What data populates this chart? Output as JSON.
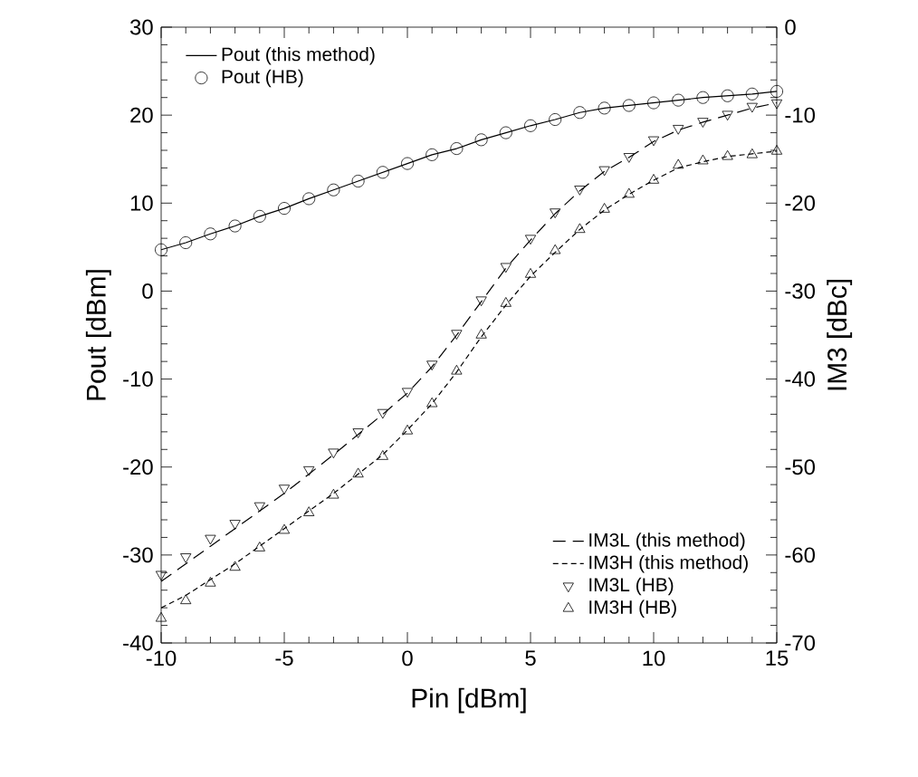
{
  "chart_data": {
    "type": "line",
    "xlabel": "Pin [dBm]",
    "ylabel": "Pout [dBm]",
    "y2label": "IM3 [dBc]",
    "x": [
      -10,
      -9,
      -8,
      -7,
      -6,
      -5,
      -4,
      -3,
      -2,
      -1,
      0,
      1,
      2,
      3,
      4,
      5,
      6,
      7,
      8,
      9,
      10,
      11,
      12,
      13,
      14,
      15
    ],
    "xlim": [
      -10,
      15
    ],
    "xticks": [
      -10,
      -5,
      0,
      5,
      10,
      15
    ],
    "ylim": [
      -40,
      30
    ],
    "yticks": [
      -40,
      -30,
      -20,
      -10,
      0,
      10,
      20,
      30
    ],
    "y2lim": [
      -70,
      0
    ],
    "y2ticks": [
      -70,
      -60,
      -50,
      -40,
      -30,
      -20,
      -10,
      0
    ],
    "legend": "top left",
    "grid": false,
    "series": [
      {
        "name": "Pout (this method)",
        "color": "#000000",
        "marker": "none",
        "line_style": "solid",
        "values": [
          4.7,
          5.5,
          6.5,
          7.4,
          8.5,
          9.4,
          10.5,
          11.5,
          12.5,
          13.5,
          14.5,
          15.5,
          16.2,
          17.2,
          18.0,
          18.8,
          19.5,
          20.3,
          20.8,
          21.1,
          21.4,
          21.7,
          22.0,
          22.2,
          22.4,
          22.7
        ]
      },
      {
        "name": "Pout (HB)",
        "type": "scatter",
        "color": "#000000",
        "marker": "circle",
        "values": [
          4.7,
          5.5,
          6.5,
          7.4,
          8.5,
          9.4,
          10.5,
          11.5,
          12.5,
          13.5,
          14.5,
          15.5,
          16.2,
          17.2,
          18.0,
          18.8,
          19.5,
          20.3,
          20.8,
          21.1,
          21.4,
          21.7,
          22.0,
          22.2,
          22.4,
          22.7
        ]
      },
      {
        "name": "IM3L (this method)",
        "axis": "y2",
        "color": "#000000",
        "marker": "none",
        "line_style": "dashed",
        "values": [
          -63.0,
          -61.0,
          -59.0,
          -57.0,
          -55.0,
          -53.0,
          -50.8,
          -48.6,
          -46.3,
          -44.0,
          -41.6,
          -38.6,
          -35.0,
          -31.2,
          -27.4,
          -24.2,
          -21.2,
          -18.6,
          -16.4,
          -14.8,
          -13.0,
          -11.7,
          -10.8,
          -10.0,
          -9.2,
          -8.6
        ]
      },
      {
        "name": "IM3H (this method)",
        "axis": "y2",
        "color": "#000000",
        "marker": "none",
        "line_style": "densely dashed",
        "values": [
          -66.0,
          -64.6,
          -62.8,
          -61.0,
          -59.0,
          -57.0,
          -55.0,
          -53.0,
          -50.8,
          -48.6,
          -45.8,
          -42.8,
          -39.2,
          -35.2,
          -31.6,
          -28.3,
          -25.6,
          -23.0,
          -20.8,
          -19.0,
          -17.4,
          -16.0,
          -15.3,
          -14.7,
          -14.4,
          -14.1
        ]
      },
      {
        "name": "IM3L (HB)",
        "type": "scatter",
        "axis": "y2",
        "color": "#000000",
        "marker": "triangle down",
        "values": [
          -62.2,
          -60.2,
          -58.1,
          -56.4,
          -54.4,
          -52.4,
          -50.3,
          -48.3,
          -46.0,
          -43.8,
          -41.4,
          -38.3,
          -34.8,
          -31.0,
          -27.2,
          -24.0,
          -21.0,
          -18.4,
          -16.2,
          -14.7,
          -12.8,
          -11.5,
          -10.7,
          -9.9,
          -9.0,
          -8.6
        ]
      },
      {
        "name": "IM3H (HB)",
        "type": "scatter",
        "axis": "y2",
        "color": "#000000",
        "marker": "triangle",
        "values": [
          -67.2,
          -65.2,
          -63.2,
          -61.4,
          -59.2,
          -57.2,
          -55.2,
          -53.2,
          -50.8,
          -48.8,
          -45.9,
          -42.8,
          -39.1,
          -35.0,
          -31.4,
          -28.1,
          -25.4,
          -23.0,
          -20.7,
          -19.0,
          -17.4,
          -15.7,
          -15.2,
          -14.7,
          -14.5,
          -14.1
        ]
      }
    ]
  }
}
